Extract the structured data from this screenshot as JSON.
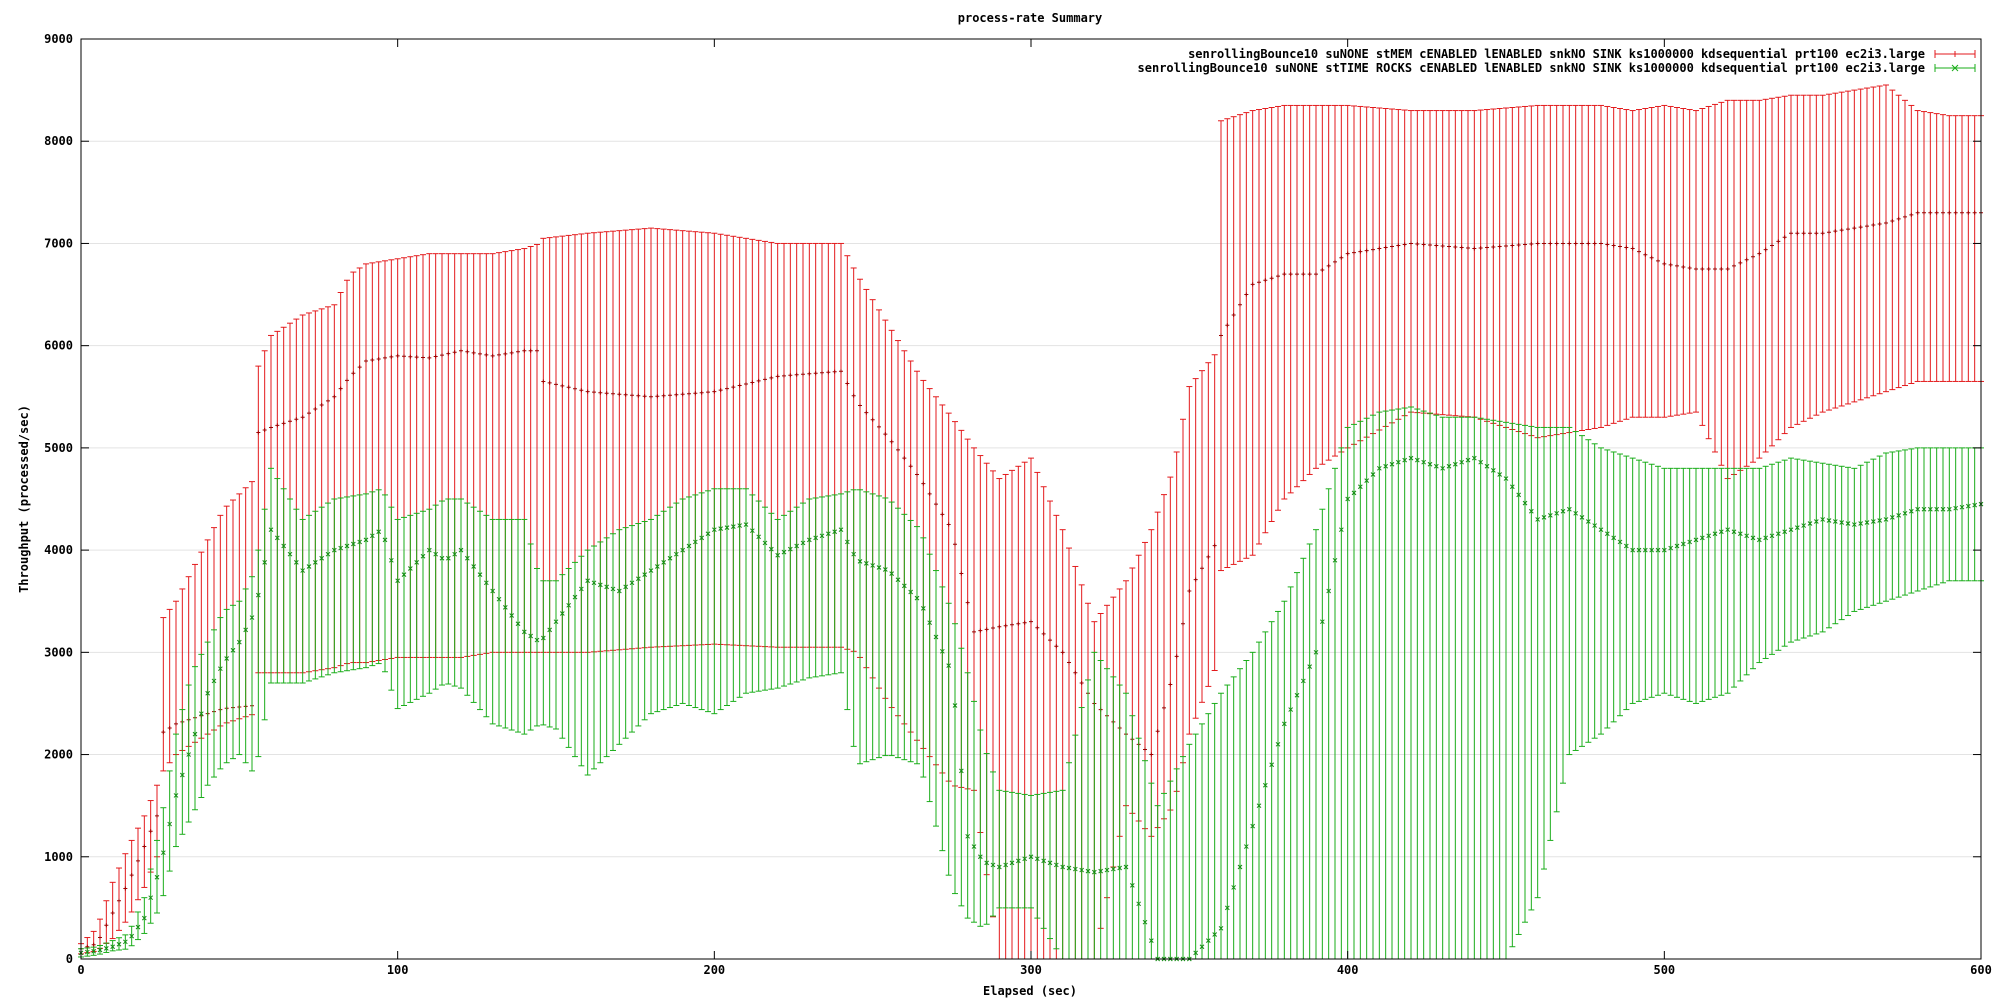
{
  "chart_data": {
    "type": "line",
    "title": "process-rate Summary",
    "xlabel": "Elapsed (sec)",
    "ylabel": "Throughput (processed/sec)",
    "xlim": [
      0,
      600
    ],
    "ylim": [
      0,
      9000
    ],
    "xticks": [
      0,
      100,
      200,
      300,
      400,
      500,
      600
    ],
    "yticks": [
      0,
      1000,
      2000,
      3000,
      4000,
      5000,
      6000,
      7000,
      8000,
      9000
    ],
    "grid": true,
    "legend_position": "top-right",
    "series": [
      {
        "name": "senrollingBounce10 suNONE stMEM cENABLED lENABLED snkNO SINK ks1000000 kdsequential prt100 ec2i3.large",
        "color": "#e31a1c",
        "marker": "plus",
        "points": [
          [
            0,
            100,
            50,
            150
          ],
          [
            5,
            150,
            80,
            300
          ],
          [
            10,
            450,
            200,
            750
          ],
          [
            15,
            750,
            400,
            1100
          ],
          [
            20,
            1100,
            700,
            1400
          ],
          [
            24,
            1400,
            1000,
            1700
          ],
          [
            25,
            2200,
            1800,
            3300
          ],
          [
            30,
            2300,
            2000,
            3500
          ],
          [
            35,
            2350,
            2100,
            3800
          ],
          [
            40,
            2400,
            2200,
            4100
          ],
          [
            45,
            2450,
            2300,
            4400
          ],
          [
            55,
            2480,
            2400,
            4700
          ],
          [
            56,
            5150,
            2800,
            5800
          ],
          [
            60,
            5200,
            2800,
            6100
          ],
          [
            70,
            5300,
            2800,
            6300
          ],
          [
            80,
            5500,
            2850,
            6400
          ],
          [
            85,
            5700,
            2900,
            6700
          ],
          [
            90,
            5850,
            2900,
            6800
          ],
          [
            100,
            5900,
            2950,
            6850
          ],
          [
            110,
            5880,
            2950,
            6900
          ],
          [
            120,
            5950,
            2950,
            6900
          ],
          [
            130,
            5900,
            3000,
            6900
          ],
          [
            140,
            5950,
            3000,
            6950
          ],
          [
            145,
            5950,
            3000,
            7000
          ],
          [
            146,
            5650,
            3000,
            7050
          ],
          [
            160,
            5550,
            3000,
            7100
          ],
          [
            180,
            5500,
            3050,
            7150
          ],
          [
            200,
            5550,
            3080,
            7100
          ],
          [
            220,
            5700,
            3050,
            7000
          ],
          [
            240,
            5750,
            3050,
            7000
          ],
          [
            245,
            5450,
            3000,
            6700
          ],
          [
            255,
            5100,
            2500,
            6200
          ],
          [
            265,
            4700,
            2100,
            5700
          ],
          [
            275,
            4200,
            1700,
            5300
          ],
          [
            282,
            3200,
            1650,
            5000
          ],
          [
            290,
            3250,
            0,
            4700
          ],
          [
            300,
            3300,
            0,
            4900
          ],
          [
            310,
            3000,
            0,
            4200
          ],
          [
            320,
            2500,
            0,
            3300
          ],
          [
            330,
            2200,
            1500,
            3700
          ],
          [
            338,
            2000,
            1200,
            4200
          ],
          [
            345,
            2800,
            1500,
            4800
          ],
          [
            350,
            3600,
            2200,
            5600
          ],
          [
            359,
            4100,
            2900,
            5950
          ],
          [
            360,
            6100,
            3800,
            8200
          ],
          [
            370,
            6600,
            3950,
            8300
          ],
          [
            380,
            6700,
            4500,
            8350
          ],
          [
            390,
            6700,
            4800,
            8350
          ],
          [
            400,
            6900,
            5000,
            8350
          ],
          [
            420,
            7000,
            5350,
            8300
          ],
          [
            440,
            6950,
            5300,
            8300
          ],
          [
            460,
            7000,
            5100,
            8350
          ],
          [
            480,
            7000,
            5200,
            8350
          ],
          [
            490,
            6950,
            5300,
            8300
          ],
          [
            500,
            6800,
            5300,
            8350
          ],
          [
            510,
            6750,
            5350,
            8300
          ],
          [
            520,
            6750,
            4700,
            8400
          ],
          [
            530,
            6900,
            4900,
            8400
          ],
          [
            540,
            7100,
            5200,
            8450
          ],
          [
            550,
            7100,
            5350,
            8450
          ],
          [
            560,
            7150,
            5450,
            8500
          ],
          [
            570,
            7200,
            5550,
            8550
          ],
          [
            580,
            7300,
            5650,
            8300
          ],
          [
            590,
            7300,
            5650,
            8250
          ],
          [
            600,
            7300,
            5650,
            8250
          ]
        ]
      },
      {
        "name": "senrollingBounce10 suNONE stTIME ROCKS cENABLED lENABLED snkNO SINK ks1000000 kdsequential prt100 ec2i3.large",
        "color": "#1aad1a",
        "marker": "cross",
        "points": [
          [
            0,
            60,
            20,
            100
          ],
          [
            5,
            80,
            40,
            120
          ],
          [
            10,
            120,
            80,
            180
          ],
          [
            15,
            180,
            100,
            250
          ],
          [
            20,
            400,
            250,
            600
          ],
          [
            25,
            900,
            500,
            1300
          ],
          [
            30,
            1600,
            1100,
            2200
          ],
          [
            35,
            2100,
            1400,
            2800
          ],
          [
            40,
            2600,
            1700,
            3100
          ],
          [
            45,
            2900,
            1900,
            3400
          ],
          [
            50,
            3100,
            2000,
            3500
          ],
          [
            55,
            3400,
            1800,
            3800
          ],
          [
            60,
            4200,
            2700,
            4800
          ],
          [
            70,
            3800,
            2700,
            4300
          ],
          [
            80,
            4000,
            2800,
            4500
          ],
          [
            90,
            4100,
            2850,
            4550
          ],
          [
            95,
            4200,
            2900,
            4600
          ],
          [
            100,
            3700,
            2450,
            4300
          ],
          [
            110,
            4000,
            2600,
            4400
          ],
          [
            115,
            3900,
            2700,
            4500
          ],
          [
            120,
            4000,
            2650,
            4500
          ],
          [
            130,
            3600,
            2300,
            4300
          ],
          [
            140,
            3200,
            2200,
            4300
          ],
          [
            145,
            3100,
            2300,
            3700
          ],
          [
            150,
            3300,
            2250,
            3700
          ],
          [
            160,
            3700,
            1800,
            4000
          ],
          [
            170,
            3600,
            2100,
            4200
          ],
          [
            180,
            3800,
            2400,
            4300
          ],
          [
            190,
            4000,
            2500,
            4500
          ],
          [
            200,
            4200,
            2400,
            4600
          ],
          [
            210,
            4250,
            2600,
            4600
          ],
          [
            220,
            3950,
            2650,
            4300
          ],
          [
            230,
            4100,
            2750,
            4500
          ],
          [
            240,
            4200,
            2800,
            4550
          ],
          [
            245,
            3900,
            1900,
            4600
          ],
          [
            255,
            3800,
            2000,
            4500
          ],
          [
            265,
            3500,
            1900,
            4200
          ],
          [
            275,
            2800,
            700,
            3400
          ],
          [
            280,
            1200,
            400,
            2800
          ],
          [
            285,
            950,
            300,
            2100
          ],
          [
            290,
            900,
            500,
            1650
          ],
          [
            300,
            1000,
            500,
            1600
          ],
          [
            310,
            900,
            0,
            1650
          ],
          [
            320,
            850,
            0,
            3000
          ],
          [
            330,
            900,
            0,
            2600
          ],
          [
            340,
            0,
            0,
            1500
          ],
          [
            350,
            0,
            0,
            2100
          ],
          [
            360,
            300,
            0,
            2600
          ],
          [
            365,
            800,
            0,
            2800
          ],
          [
            370,
            1300,
            0,
            3000
          ],
          [
            380,
            2300,
            0,
            3500
          ],
          [
            390,
            3000,
            0,
            4200
          ],
          [
            400,
            4500,
            0,
            5200
          ],
          [
            410,
            4800,
            0,
            5350
          ],
          [
            420,
            4900,
            0,
            5400
          ],
          [
            430,
            4800,
            0,
            5300
          ],
          [
            440,
            4900,
            0,
            5300
          ],
          [
            450,
            4700,
            0,
            5250
          ],
          [
            460,
            4300,
            600,
            5200
          ],
          [
            470,
            4400,
            2000,
            5200
          ],
          [
            480,
            4200,
            2200,
            5000
          ],
          [
            490,
            4000,
            2500,
            4900
          ],
          [
            500,
            4000,
            2600,
            4800
          ],
          [
            510,
            4100,
            2500,
            4800
          ],
          [
            520,
            4200,
            2600,
            4800
          ],
          [
            530,
            4100,
            2900,
            4800
          ],
          [
            540,
            4200,
            3100,
            4900
          ],
          [
            550,
            4300,
            3200,
            4850
          ],
          [
            560,
            4250,
            3400,
            4800
          ],
          [
            570,
            4300,
            3500,
            4950
          ],
          [
            580,
            4400,
            3600,
            5000
          ],
          [
            590,
            4400,
            3700,
            5000
          ],
          [
            600,
            4450,
            3700,
            5000
          ]
        ]
      }
    ]
  }
}
